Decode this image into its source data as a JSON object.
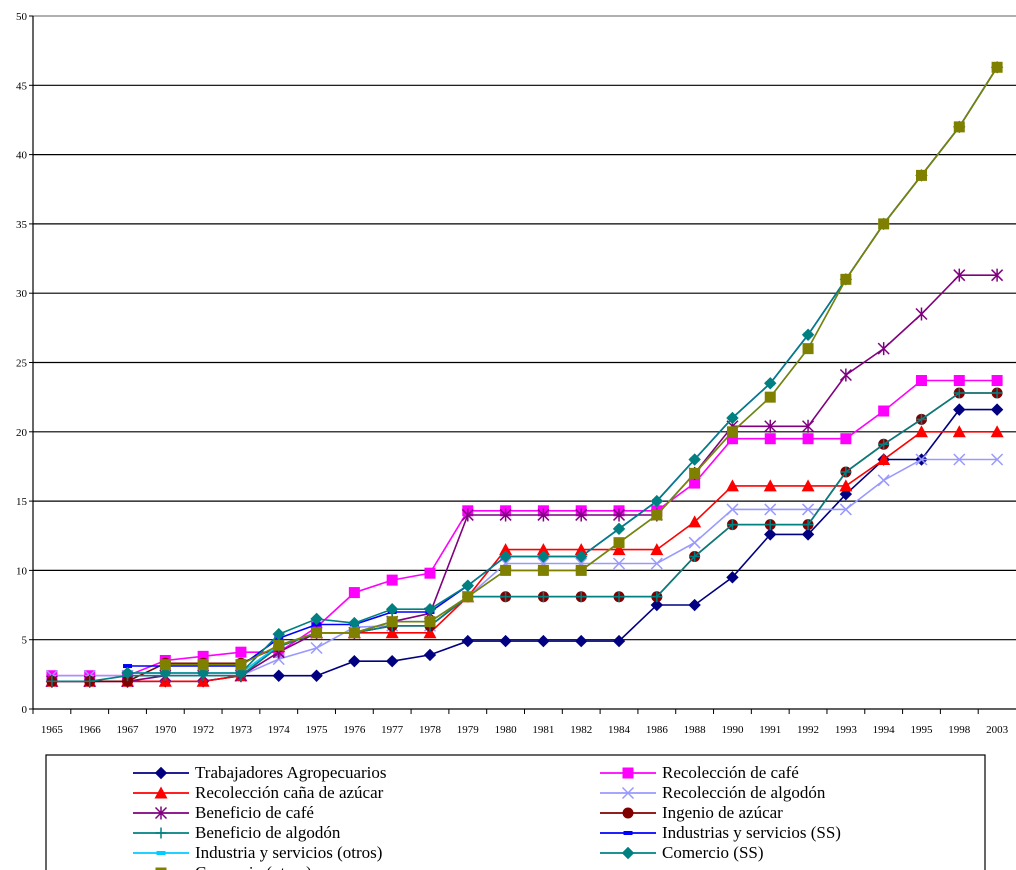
{
  "chart_data": {
    "type": "line",
    "title": "",
    "xlabel": "",
    "ylabel": "",
    "categories": [
      "1965",
      "1966",
      "1967",
      "1970",
      "1972",
      "1973",
      "1974",
      "1975",
      "1976",
      "1977",
      "1978",
      "1979",
      "1980",
      "1981",
      "1982",
      "1984",
      "1986",
      "1988",
      "1990",
      "1991",
      "1992",
      "1993",
      "1994",
      "1995",
      "1998",
      "2003"
    ],
    "ylim": [
      0,
      50
    ],
    "yticks": [
      0,
      5,
      10,
      15,
      20,
      25,
      30,
      35,
      40,
      45,
      50
    ],
    "grid": "horizontal",
    "legend_position": "bottom",
    "series": [
      {
        "name": "Trabajadores Agropecuarios",
        "color": "#000080",
        "marker": "diamond",
        "values": [
          2.0,
          2.0,
          2.0,
          2.0,
          2.0,
          2.4,
          2.4,
          2.4,
          3.45,
          3.45,
          3.9,
          4.9,
          4.9,
          4.9,
          4.9,
          4.9,
          7.5,
          7.5,
          9.5,
          12.6,
          12.6,
          15.5,
          18.0,
          18.0,
          21.6,
          21.6
        ]
      },
      {
        "name": "Recolección de café",
        "color": "#ff00ff",
        "marker": "square",
        "values": [
          2.4,
          2.4,
          2.4,
          3.5,
          3.8,
          4.1,
          4.1,
          5.9,
          8.4,
          9.3,
          9.8,
          14.3,
          14.3,
          14.3,
          14.3,
          14.3,
          14.3,
          16.3,
          19.5,
          19.5,
          19.5,
          19.5,
          21.5,
          23.7,
          23.7,
          23.7
        ]
      },
      {
        "name": "Recolección caña de azúcar",
        "color": "#ff0000",
        "marker": "triangle",
        "values": [
          2.0,
          2.0,
          2.0,
          2.0,
          2.0,
          2.4,
          4.5,
          5.5,
          5.5,
          5.5,
          5.5,
          8.1,
          11.5,
          11.5,
          11.5,
          11.5,
          11.5,
          13.5,
          16.1,
          16.1,
          16.1,
          16.1,
          18.0,
          20.0,
          20.0,
          20.0
        ]
      },
      {
        "name": "Recolección de algodón",
        "color": "#9999ff",
        "marker": "x",
        "values": [
          2.4,
          2.4,
          2.4,
          2.4,
          2.4,
          2.4,
          3.6,
          4.4,
          5.9,
          6.0,
          6.0,
          8.1,
          10.5,
          10.5,
          10.5,
          10.5,
          10.5,
          12.0,
          14.4,
          14.4,
          14.4,
          14.4,
          16.5,
          18.0,
          18.0,
          18.0
        ]
      },
      {
        "name": "Beneficio de café",
        "color": "#800080",
        "marker": "star",
        "values": [
          2.0,
          2.0,
          2.0,
          2.4,
          2.4,
          2.4,
          4.1,
          5.5,
          5.5,
          6.3,
          6.9,
          14.0,
          14.0,
          14.0,
          14.0,
          14.0,
          14.0,
          17.0,
          20.4,
          20.4,
          20.4,
          24.1,
          26.0,
          28.5,
          31.3,
          31.3
        ]
      },
      {
        "name": "Ingenio de azúcar",
        "color": "#800000",
        "marker": "circle",
        "values": [
          2.0,
          2.0,
          2.0,
          3.3,
          3.3,
          3.3,
          4.5,
          5.5,
          5.5,
          6.0,
          6.0,
          8.1,
          8.1,
          8.1,
          8.1,
          8.1,
          8.1,
          11.0,
          13.3,
          13.3,
          13.3,
          17.1,
          19.1,
          20.9,
          22.8,
          22.8
        ]
      },
      {
        "name": "Beneficio de algodón",
        "color": "#008080",
        "marker": "plus",
        "values": [
          2.0,
          2.0,
          2.4,
          2.4,
          2.4,
          2.4,
          4.5,
          5.5,
          5.5,
          6.0,
          6.0,
          8.1,
          8.1,
          8.1,
          8.1,
          8.1,
          8.1,
          11.0,
          13.3,
          13.3,
          13.3,
          17.1,
          19.1,
          20.9,
          22.8,
          22.8
        ]
      },
      {
        "name": "Industrias y servicios (SS)",
        "color": "#0000ff",
        "marker": "dash",
        "values": [
          null,
          null,
          3.1,
          3.1,
          3.1,
          3.1,
          5.1,
          6.1,
          6.1,
          7.0,
          7.0,
          8.9,
          11.0,
          11.0,
          11.0,
          13.0,
          15.0,
          18.0,
          21.0,
          23.5,
          27.0,
          31.0,
          35.0,
          38.5,
          42.0,
          46.3
        ]
      },
      {
        "name": "Industria y servicios (otros)",
        "color": "#00ccff",
        "marker": "dash",
        "values": [
          null,
          null,
          2.6,
          2.6,
          2.6,
          2.6,
          4.6,
          5.5,
          5.5,
          6.3,
          6.3,
          8.1,
          10.0,
          10.0,
          10.0,
          12.0,
          14.0,
          17.0,
          20.0,
          22.5,
          26.0,
          31.0,
          35.0,
          38.5,
          42.0,
          46.3
        ]
      },
      {
        "name": "Comercio (SS)",
        "color": "#008080",
        "marker": "diamond",
        "values": [
          null,
          null,
          2.6,
          2.6,
          2.6,
          2.6,
          5.4,
          6.5,
          6.2,
          7.2,
          7.2,
          8.9,
          11.0,
          11.0,
          11.0,
          13.0,
          15.0,
          18.0,
          21.0,
          23.5,
          27.0,
          31.0,
          35.0,
          38.5,
          42.0,
          46.3
        ]
      },
      {
        "name": "Comercio (otros)",
        "color": "#808000",
        "marker": "square",
        "values": [
          null,
          null,
          null,
          3.2,
          3.2,
          3.2,
          4.6,
          5.5,
          5.5,
          6.3,
          6.3,
          8.1,
          10.0,
          10.0,
          10.0,
          12.0,
          14.0,
          17.0,
          20.0,
          22.5,
          26.0,
          31.0,
          35.0,
          38.5,
          42.0,
          46.3
        ]
      }
    ]
  }
}
